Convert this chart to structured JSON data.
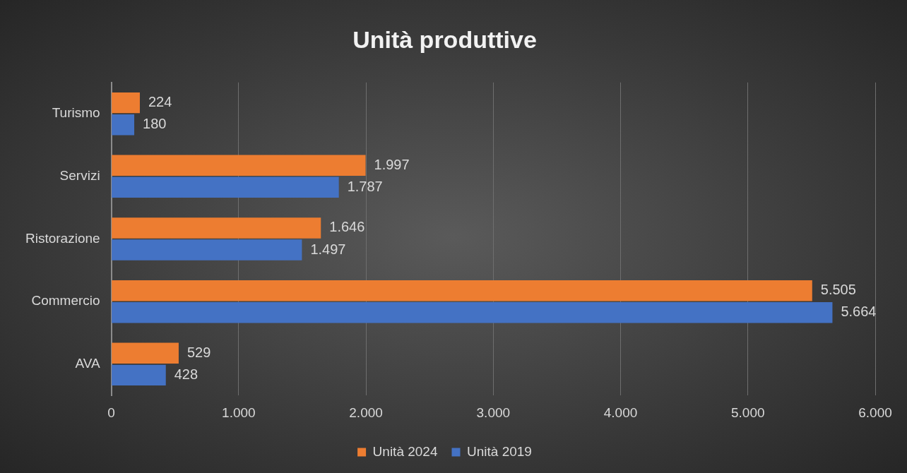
{
  "chart_data": {
    "type": "bar",
    "title": "Unità produttive",
    "orientation": "horizontal",
    "categories": [
      "Turismo",
      "Servizi",
      "Ristorazione",
      "Commercio",
      "AVA"
    ],
    "series": [
      {
        "name": "Unità 2024",
        "color": "#ed7d31",
        "values": [
          224,
          1997,
          1646,
          5505,
          529
        ],
        "value_labels": [
          "224",
          "1.997",
          "1.646",
          "5.505",
          "529"
        ]
      },
      {
        "name": "Unità 2019",
        "color": "#4472c4",
        "values": [
          180,
          1787,
          1497,
          5664,
          428
        ],
        "value_labels": [
          "180",
          "1.787",
          "1.497",
          "5.664",
          "428"
        ]
      }
    ],
    "xlim": [
      0,
      6000
    ],
    "xticks": [
      0,
      {
        "value": 1000,
        "label": "1.000"
      },
      {
        "value": 2000,
        "label": "2.000"
      },
      {
        "value": 3000,
        "label": "3.000"
      },
      {
        "value": 4000,
        "label": "4.000"
      },
      {
        "value": 5000,
        "label": "5.000"
      },
      {
        "value": 6000,
        "label": "6.000"
      }
    ],
    "grid": "x",
    "legend": "bottom"
  }
}
